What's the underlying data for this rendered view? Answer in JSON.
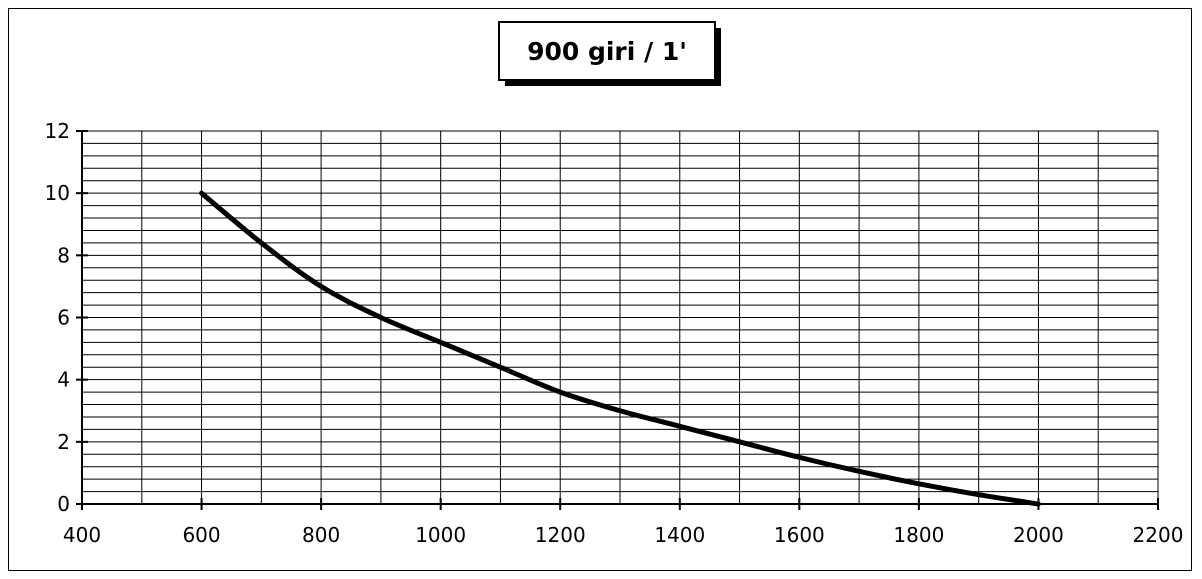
{
  "chart_data": {
    "type": "line",
    "title": "900 giri / 1'",
    "xlabel": "",
    "ylabel": "",
    "xlim": [
      400,
      2200
    ],
    "ylim": [
      0,
      12
    ],
    "x_ticks": [
      400,
      600,
      800,
      1000,
      1200,
      1400,
      1600,
      1800,
      2000,
      2200
    ],
    "y_ticks": [
      0,
      2,
      4,
      6,
      8,
      10,
      12
    ],
    "x_minor_step": 100,
    "y_minor_step": 0.4,
    "grid": true,
    "legend": "none",
    "colors": {
      "line": "#000000",
      "grid": "#000000",
      "background": "#ffffff"
    },
    "series": [
      {
        "x": [
          600,
          700,
          800,
          900,
          1000,
          1100,
          1200,
          1300,
          1400,
          1500,
          1600,
          1700,
          1800,
          1900,
          2000
        ],
        "y": [
          10,
          8.4,
          7.0,
          6.0,
          5.2,
          4.4,
          3.6,
          3.0,
          2.5,
          2.0,
          1.5,
          1.05,
          0.65,
          0.3,
          0
        ]
      }
    ]
  }
}
